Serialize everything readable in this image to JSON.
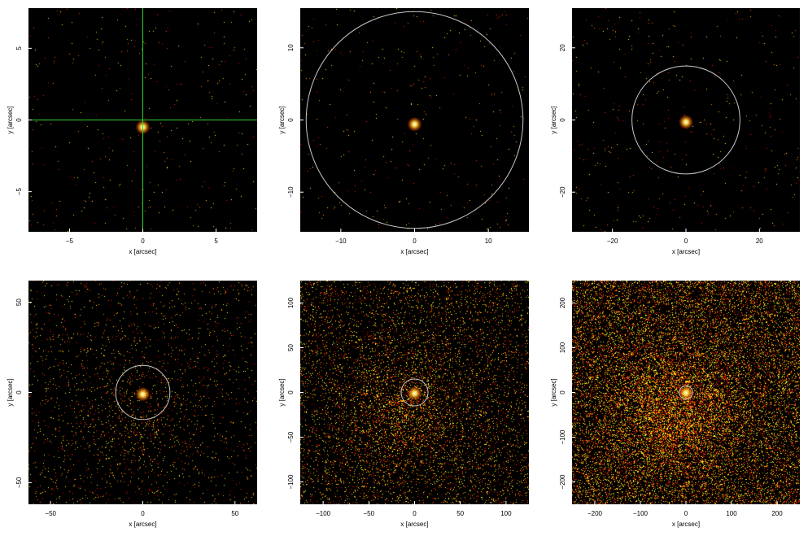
{
  "panels": [
    {
      "id": "p1",
      "xlabel": "x [arcsec]",
      "ylabel": "y [arcsec]",
      "xlim": [
        -7.8,
        7.8
      ],
      "ylim": [
        -7.8,
        7.8
      ],
      "xticks": [
        -5,
        0,
        5
      ],
      "yticks": [
        -5,
        0,
        5
      ],
      "overlay": "crosshair",
      "overlay_color": "#2bd42b",
      "source_center": [
        0,
        -0.5
      ],
      "density": 0.004,
      "diffuse": 0.0,
      "seed": 11
    },
    {
      "id": "p2",
      "xlabel": "x [arcsec]",
      "ylabel": "y [arcsec]",
      "xlim": [
        -15.5,
        15.5
      ],
      "ylim": [
        -15.5,
        15.5
      ],
      "xticks": [
        -10,
        0,
        10
      ],
      "yticks": [
        -10,
        0,
        10
      ],
      "overlay": "circle",
      "circle_radius": 14.7,
      "overlay_color": "#c8c8c8",
      "source_center": [
        0,
        -0.6
      ],
      "density": 0.004,
      "diffuse": 0.0,
      "seed": 23
    },
    {
      "id": "p3",
      "xlabel": "x [arcsec]",
      "ylabel": "y [arcsec]",
      "xlim": [
        -31,
        31
      ],
      "ylim": [
        -31,
        31
      ],
      "xticks": [
        -20,
        0,
        20
      ],
      "yticks": [
        -20,
        0,
        20
      ],
      "overlay": "circle",
      "circle_radius": 14.7,
      "overlay_color": "#c8c8c8",
      "source_center": [
        0,
        -0.6
      ],
      "density": 0.005,
      "diffuse": 0.0,
      "seed": 37
    },
    {
      "id": "p4",
      "xlabel": "x [arcsec]",
      "ylabel": "y [arcsec]",
      "xlim": [
        -62,
        62
      ],
      "ylim": [
        -62,
        62
      ],
      "xticks": [
        -50,
        0,
        50
      ],
      "yticks": [
        -50,
        0,
        50
      ],
      "overlay": "circle",
      "circle_radius": 14.7,
      "overlay_color": "#c8c8c8",
      "source_center": [
        0,
        -1
      ],
      "density": 0.02,
      "diffuse": 0.1,
      "seed": 41
    },
    {
      "id": "p5",
      "xlabel": "x [arcsec]",
      "ylabel": "y [arcsec]",
      "xlim": [
        -125,
        125
      ],
      "ylim": [
        -125,
        125
      ],
      "xticks": [
        -100,
        -50,
        0,
        50,
        100
      ],
      "yticks": [
        -100,
        -50,
        0,
        50,
        100
      ],
      "overlay": "circle",
      "circle_radius": 14.7,
      "overlay_color": "#c8c8c8",
      "source_center": [
        0,
        -1
      ],
      "density": 0.07,
      "diffuse": 0.3,
      "seed": 53
    },
    {
      "id": "p6",
      "xlabel": "x [arcsec]",
      "ylabel": "y [arcsec]",
      "xlim": [
        -250,
        250
      ],
      "ylim": [
        -250,
        250
      ],
      "xticks": [
        -200,
        -100,
        0,
        100,
        200
      ],
      "yticks": [
        -200,
        -100,
        0,
        100,
        200
      ],
      "overlay": "circle",
      "circle_radius": 14.7,
      "overlay_color": "#c8c8c8",
      "source_center": [
        0,
        -1
      ],
      "density": 0.17,
      "diffuse": 0.55,
      "seed": 67
    }
  ]
}
